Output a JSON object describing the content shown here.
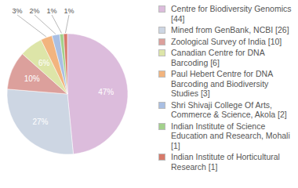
{
  "chart_data": {
    "type": "pie",
    "categories": [
      "Centre for Biodiversity Genomics [44]",
      "Mined from GenBank, NCBI [26]",
      "Zoological Survey of India [10]",
      "Canadian Centre for DNA Barcoding [6]",
      "Paul Hebert Centre for DNA Barcoding and Biodiversity Studies [3]",
      "Shri Shivaji College Of Arts, Commerce & Science, Akola [2]",
      "Indian Institute of Science Education and Research, Mohali [1]",
      "Indian Institute of Horticultural Research [1]"
    ],
    "values": [
      47,
      27,
      10,
      6,
      3,
      2,
      1,
      1
    ],
    "value_labels": [
      "47%",
      "27%",
      "10%",
      "6%",
      "3%",
      "2%",
      "1%",
      "1%"
    ],
    "colors": [
      "#dcbcdc",
      "#cdd6e3",
      "#dca09c",
      "#dde5a8",
      "#f2b47e",
      "#a9bfe3",
      "#a3d18c",
      "#d77a6a"
    ],
    "data_labels": true,
    "legend": "right"
  }
}
